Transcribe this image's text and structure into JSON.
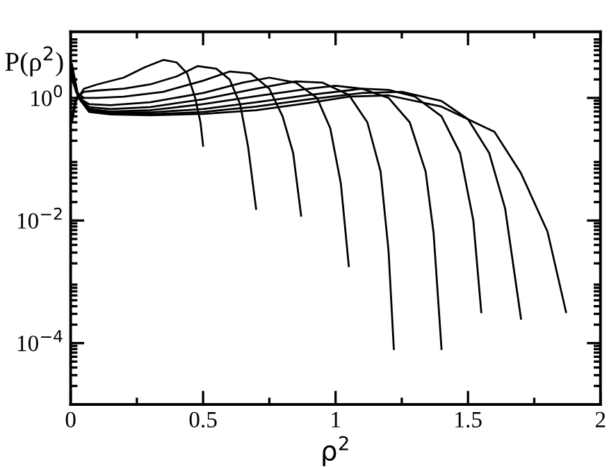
{
  "chart_data": {
    "type": "line",
    "xlabel": "ρ$^{2}$",
    "ylabel": "P(ρ$^{2}$)",
    "log": "y",
    "xlim": [
      0,
      2
    ],
    "xticks": [
      0,
      0.5,
      1,
      1.5,
      2
    ],
    "ylim": [
      1e-05,
      12
    ],
    "yticks": [
      {
        "value": 1,
        "label": "10$^{0}$"
      },
      {
        "value": 0.01,
        "label": "10$^{−2}$"
      },
      {
        "value": 0.0001,
        "label": "10$^{−4}$"
      }
    ],
    "grid": false,
    "legend": false,
    "marker": "none",
    "line_style": "solid",
    "series": [
      {
        "color": "#000000",
        "x": [
          0.005,
          0.02,
          0.05,
          0.1,
          0.2,
          0.28,
          0.35,
          0.4,
          0.44,
          0.47,
          0.49,
          0.5
        ],
        "values": [
          0.4,
          0.89,
          1.41,
          1.66,
          2.14,
          3.16,
          4.17,
          3.8,
          2.51,
          1.0,
          0.4,
          0.166
        ]
      },
      {
        "color": "#000000",
        "x": [
          0.005,
          0.02,
          0.05,
          0.1,
          0.2,
          0.3,
          0.4,
          0.48,
          0.55,
          0.6,
          0.64,
          0.67,
          0.7
        ],
        "values": [
          0.5,
          1.0,
          1.26,
          1.32,
          1.41,
          1.66,
          2.24,
          3.31,
          3.0,
          2.0,
          0.79,
          0.158,
          0.0155
        ]
      },
      {
        "color": "#000000",
        "x": [
          0.005,
          0.02,
          0.05,
          0.1,
          0.2,
          0.35,
          0.5,
          0.6,
          0.68,
          0.75,
          0.8,
          0.84,
          0.87
        ],
        "values": [
          2.51,
          1.26,
          1.0,
          1.0,
          1.05,
          1.26,
          1.91,
          2.69,
          2.51,
          1.41,
          0.5,
          0.126,
          0.012
        ]
      },
      {
        "color": "#000000",
        "x": [
          0.005,
          0.03,
          0.07,
          0.15,
          0.3,
          0.5,
          0.65,
          0.75,
          0.85,
          0.93,
          0.98,
          1.02,
          1.05
        ],
        "values": [
          2.0,
          1.0,
          0.79,
          0.76,
          0.85,
          1.2,
          1.78,
          2.14,
          1.78,
          1.0,
          0.32,
          0.04,
          0.0018
        ]
      },
      {
        "color": "#000000",
        "x": [
          0.005,
          0.03,
          0.07,
          0.15,
          0.3,
          0.5,
          0.7,
          0.85,
          0.95,
          1.05,
          1.12,
          1.17,
          1.2,
          1.22
        ],
        "values": [
          2.24,
          1.0,
          0.71,
          0.66,
          0.71,
          0.95,
          1.41,
          1.86,
          1.78,
          1.12,
          0.4,
          0.063,
          0.0032,
          8e-05
        ]
      },
      {
        "color": "#000000",
        "x": [
          0.005,
          0.03,
          0.07,
          0.15,
          0.3,
          0.5,
          0.7,
          0.9,
          1.0,
          1.1,
          1.2,
          1.28,
          1.34,
          1.37,
          1.4
        ],
        "values": [
          2.51,
          1.0,
          0.66,
          0.6,
          0.63,
          0.79,
          1.07,
          1.41,
          1.58,
          1.41,
          1.0,
          0.4,
          0.063,
          0.0063,
          8e-05
        ]
      },
      {
        "color": "#000000",
        "x": [
          0.005,
          0.03,
          0.07,
          0.15,
          0.3,
          0.5,
          0.7,
          0.9,
          1.1,
          1.2,
          1.3,
          1.4,
          1.47,
          1.52,
          1.55
        ],
        "values": [
          2.82,
          1.0,
          0.63,
          0.58,
          0.58,
          0.66,
          0.85,
          1.12,
          1.41,
          1.35,
          1.05,
          0.5,
          0.126,
          0.01,
          0.00032
        ]
      },
      {
        "color": "#000000",
        "x": [
          0.005,
          0.03,
          0.07,
          0.15,
          0.3,
          0.5,
          0.7,
          0.9,
          1.1,
          1.25,
          1.4,
          1.5,
          1.58,
          1.64,
          1.7
        ],
        "values": [
          3.16,
          1.0,
          0.6,
          0.55,
          0.54,
          0.59,
          0.72,
          0.95,
          1.2,
          1.26,
          0.89,
          0.45,
          0.126,
          0.0158,
          0.00025
        ]
      },
      {
        "color": "#000000",
        "x": [
          0.005,
          0.03,
          0.07,
          0.15,
          0.3,
          0.5,
          0.7,
          0.9,
          1.05,
          1.2,
          1.4,
          1.6,
          1.7,
          1.8,
          1.87
        ],
        "values": [
          3.55,
          1.0,
          0.59,
          0.54,
          0.52,
          0.55,
          0.63,
          0.83,
          1.05,
          1.1,
          0.72,
          0.28,
          0.059,
          0.0066,
          0.00032
        ]
      }
    ]
  }
}
